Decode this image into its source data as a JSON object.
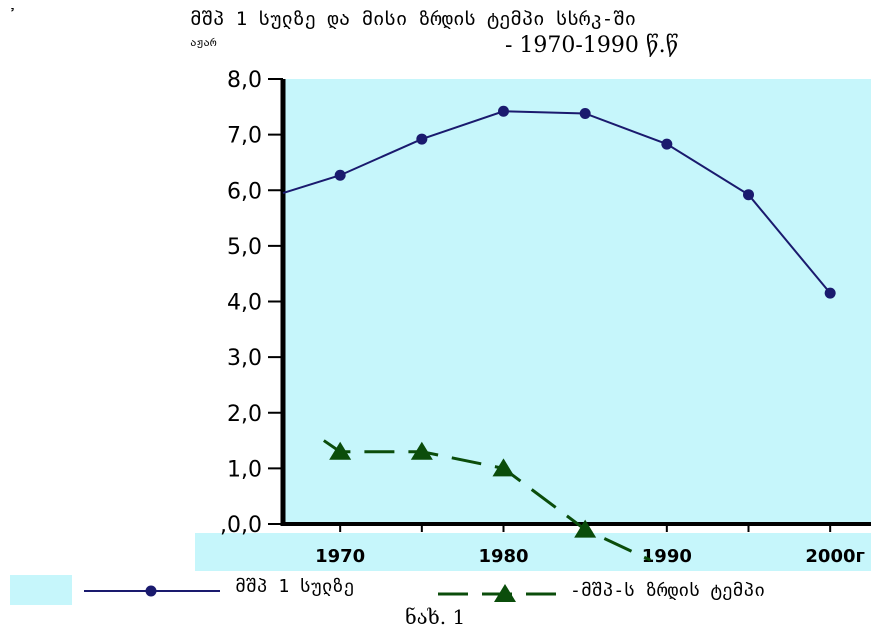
{
  "title": {
    "line1": "მშპ 1 სულზე და მისი ზრდის ტემპი სსრკ-ში",
    "prefix": "აჟარ",
    "line2": "- 1970-1990 წ.წ"
  },
  "corner_mark": "᾽",
  "caption": "ნახ. 1",
  "legend": [
    {
      "label": "მშპ 1 სულზე",
      "color": "#1a1a6e",
      "marker": "circle"
    },
    {
      "label": "-მშპ-ს ზრდის ტემპი",
      "color": "#0b4d0b",
      "marker": "triangle"
    }
  ],
  "colors": {
    "plot_bg": "#c6f6fb",
    "series1": "#1a1a6e",
    "series2": "#0b4d0b",
    "frame": "#000000"
  },
  "chart_data": {
    "type": "line",
    "title": "მშპ 1 სულზე და მისი ზრდის ტემპი სსრკ-ში - 1970-1990 წ.წ",
    "xlabel": "",
    "ylabel": "",
    "ylim": [
      0,
      8
    ],
    "xlim": [
      1966.5,
      2002.5
    ],
    "x_ticks": [
      1970,
      1980,
      1990,
      2000
    ],
    "x_tick_labels": [
      "1970",
      "1980",
      "1990",
      "2000г"
    ],
    "y_ticks": [
      0,
      1,
      2,
      3,
      4,
      5,
      6,
      7,
      8
    ],
    "y_tick_labels": [
      ",0,0",
      "1,0",
      "2,0",
      "3,0",
      "4,0",
      "5,0",
      "6,0",
      "7,0",
      "8,0"
    ],
    "grid": false,
    "legend_position": "bottom",
    "series": [
      {
        "name": "მშპ 1 სულზე",
        "style": "solid",
        "marker": "circle",
        "x": [
          1966.5,
          1970,
          1975,
          1980,
          1985,
          1990,
          1995,
          2000
        ],
        "y": [
          5.95,
          6.27,
          6.92,
          7.42,
          7.38,
          6.83,
          5.92,
          4.15
        ],
        "marker_shown": [
          false,
          true,
          true,
          true,
          true,
          true,
          true,
          true
        ]
      },
      {
        "name": "-მშპ-ს ზრდის ტემპი",
        "style": "dashed",
        "marker": "triangle",
        "x": [
          1969,
          1970,
          1975,
          1980,
          1985,
          1989
        ],
        "y": [
          1.5,
          1.3,
          1.3,
          1.0,
          -0.1,
          -0.65
        ],
        "marker_shown": [
          false,
          true,
          true,
          true,
          true,
          false
        ]
      }
    ]
  }
}
